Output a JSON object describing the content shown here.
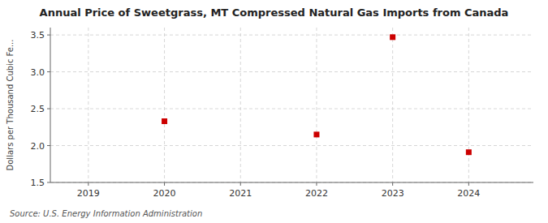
{
  "chart_data": {
    "type": "scatter",
    "title": "Annual Price of Sweetgrass, MT Compressed Natural Gas Imports from Canada",
    "ylabel": "Dollars per Thousand Cubic Fe...",
    "source": "Source: U.S. Energy Information Administration",
    "x": [
      2020,
      2022,
      2023,
      2024
    ],
    "values": [
      2.33,
      2.15,
      3.47,
      1.91
    ],
    "color": "#cc0000",
    "marker": "square",
    "xlim": [
      2018.5,
      2024.85
    ],
    "ylim": [
      1.5,
      3.6
    ],
    "xticks": [
      2019,
      2020,
      2021,
      2022,
      2023,
      2024
    ],
    "yticks": [
      1.5,
      {
        "value": 2.0,
        "label": "2.0"
      },
      2.5,
      {
        "value": 3.0,
        "label": "3.0"
      },
      3.5
    ],
    "grid": true
  }
}
